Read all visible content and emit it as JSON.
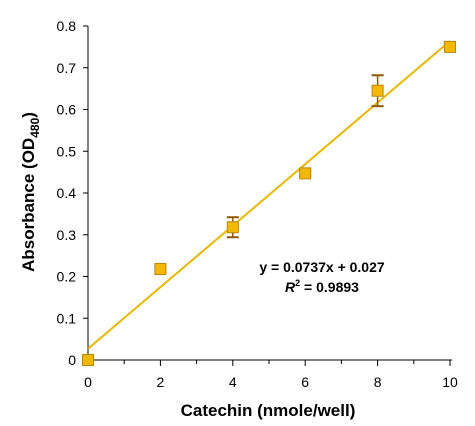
{
  "chart_data": {
    "type": "scatter",
    "xlabel_main": "Catechin (nmole/well)",
    "ylabel_main": "Absorbance (OD",
    "ylabel_sub": "480",
    "ylabel_end": ")",
    "xlim": [
      0,
      10
    ],
    "ylim": [
      0,
      0.8
    ],
    "x_ticks": [
      0,
      2,
      4,
      6,
      8,
      10
    ],
    "x_tick_labels": [
      "0",
      "2",
      "4",
      "6",
      "8",
      "10"
    ],
    "y_ticks": [
      0,
      0.1,
      0.2,
      0.3,
      0.4,
      0.5,
      0.6,
      0.7,
      0.8
    ],
    "y_tick_labels": [
      "0",
      "0.1",
      "0.2",
      "0.3",
      "0.4",
      "0.5",
      "0.6",
      "0.7",
      "0.8"
    ],
    "grid": false,
    "marker_color": "#f5b800",
    "marker_edge_color": "#b8860b",
    "errorbar_color": "#8b5a00",
    "trendline_color": "#e6b800",
    "points": [
      {
        "x": 0,
        "y": 0.0,
        "err": 0.0
      },
      {
        "x": 2,
        "y": 0.218,
        "err": 0.006
      },
      {
        "x": 4,
        "y": 0.318,
        "err": 0.024
      },
      {
        "x": 6,
        "y": 0.447,
        "err": 0.006
      },
      {
        "x": 8,
        "y": 0.645,
        "err": 0.037
      },
      {
        "x": 10,
        "y": 0.75,
        "err": 0.006
      }
    ],
    "trendline": {
      "slope": 0.0737,
      "intercept": 0.027,
      "equation_label": "y = 0.0737x + 0.027",
      "r2_label_R": "R",
      "r2_label_sup": "2",
      "r2_label_rest": " = 0.9893"
    }
  }
}
